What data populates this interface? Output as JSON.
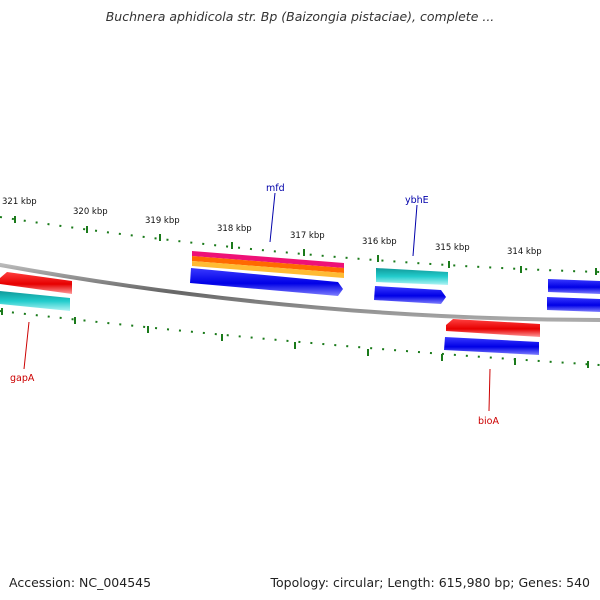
{
  "title": "Buchnera aphidicola str. Bp (Baizongia pistaciae), complete ...",
  "footer": {
    "accession": "Accession: NC_004545",
    "stats": "Topology: circular; Length: 615,980 bp; Genes: 540"
  },
  "colors": {
    "backbone": "#888888",
    "ticks": "#1a7a1a",
    "forward_label": "#0000aa",
    "reverse_label": "#cc0000",
    "cds_blue": "#0000ee",
    "cds_red": "#ee0000",
    "cds_cyan": "#22cccc",
    "cds_magenta": "#ee1177",
    "cds_orange": "#ff9900"
  },
  "scale": {
    "unit": "kbp",
    "labels": [
      "321 kbp",
      "320 kbp",
      "319 kbp",
      "318 kbp",
      "317 kbp",
      "316 kbp",
      "315 kbp",
      "314 kbp"
    ]
  },
  "gene_labels": {
    "mfd": "mfd",
    "ybhE": "ybhE",
    "gapA": "gapA",
    "bioA": "bioA"
  }
}
